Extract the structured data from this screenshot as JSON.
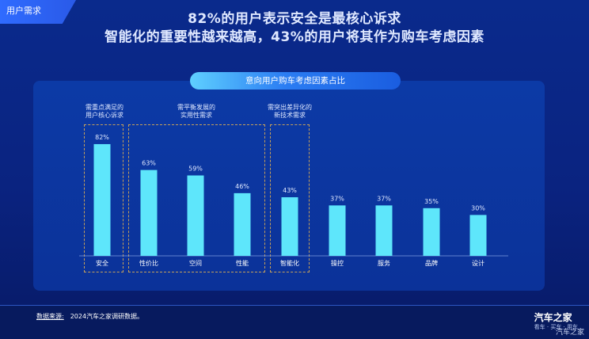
{
  "header": {
    "section_tag": "用户需求",
    "headline_line1": "82%的用户表示安全是最核心诉求",
    "headline_line2": "智能化的重要性越来越高，43%的用户将其作为购车考虑因素"
  },
  "chart_data": {
    "type": "bar",
    "title": "意向用户购车考虑因素占比",
    "categories": [
      "安全",
      "性价比",
      "空间",
      "性能",
      "智能化",
      "操控",
      "服务",
      "品牌",
      "设计"
    ],
    "values": [
      82,
      63,
      59,
      46,
      43,
      37,
      37,
      35,
      30
    ],
    "value_labels": [
      "82%",
      "63%",
      "59%",
      "46%",
      "43%",
      "37%",
      "37%",
      "35%",
      "30%"
    ],
    "unit": "%",
    "ylim": [
      0,
      100
    ],
    "grid": false,
    "bar_color": "#5ee6fb",
    "groups": [
      {
        "label_line1": "需重点满足的",
        "label_line2": "用户核心诉求",
        "categories": [
          "安全"
        ]
      },
      {
        "label_line1": "需平衡发展的",
        "label_line2": "实用性需求",
        "categories": [
          "性价比",
          "空间",
          "性能"
        ]
      },
      {
        "label_line1": "需突出差异化的",
        "label_line2": "新技术需求",
        "categories": [
          "智能化"
        ]
      }
    ]
  },
  "footer": {
    "source_label": "数据来源:",
    "source_text": "2024汽车之家调研数据。",
    "logo_name": "汽车之家",
    "logo_sub": "看车 · 买车 · 用车",
    "watermark": "汽车之家"
  }
}
